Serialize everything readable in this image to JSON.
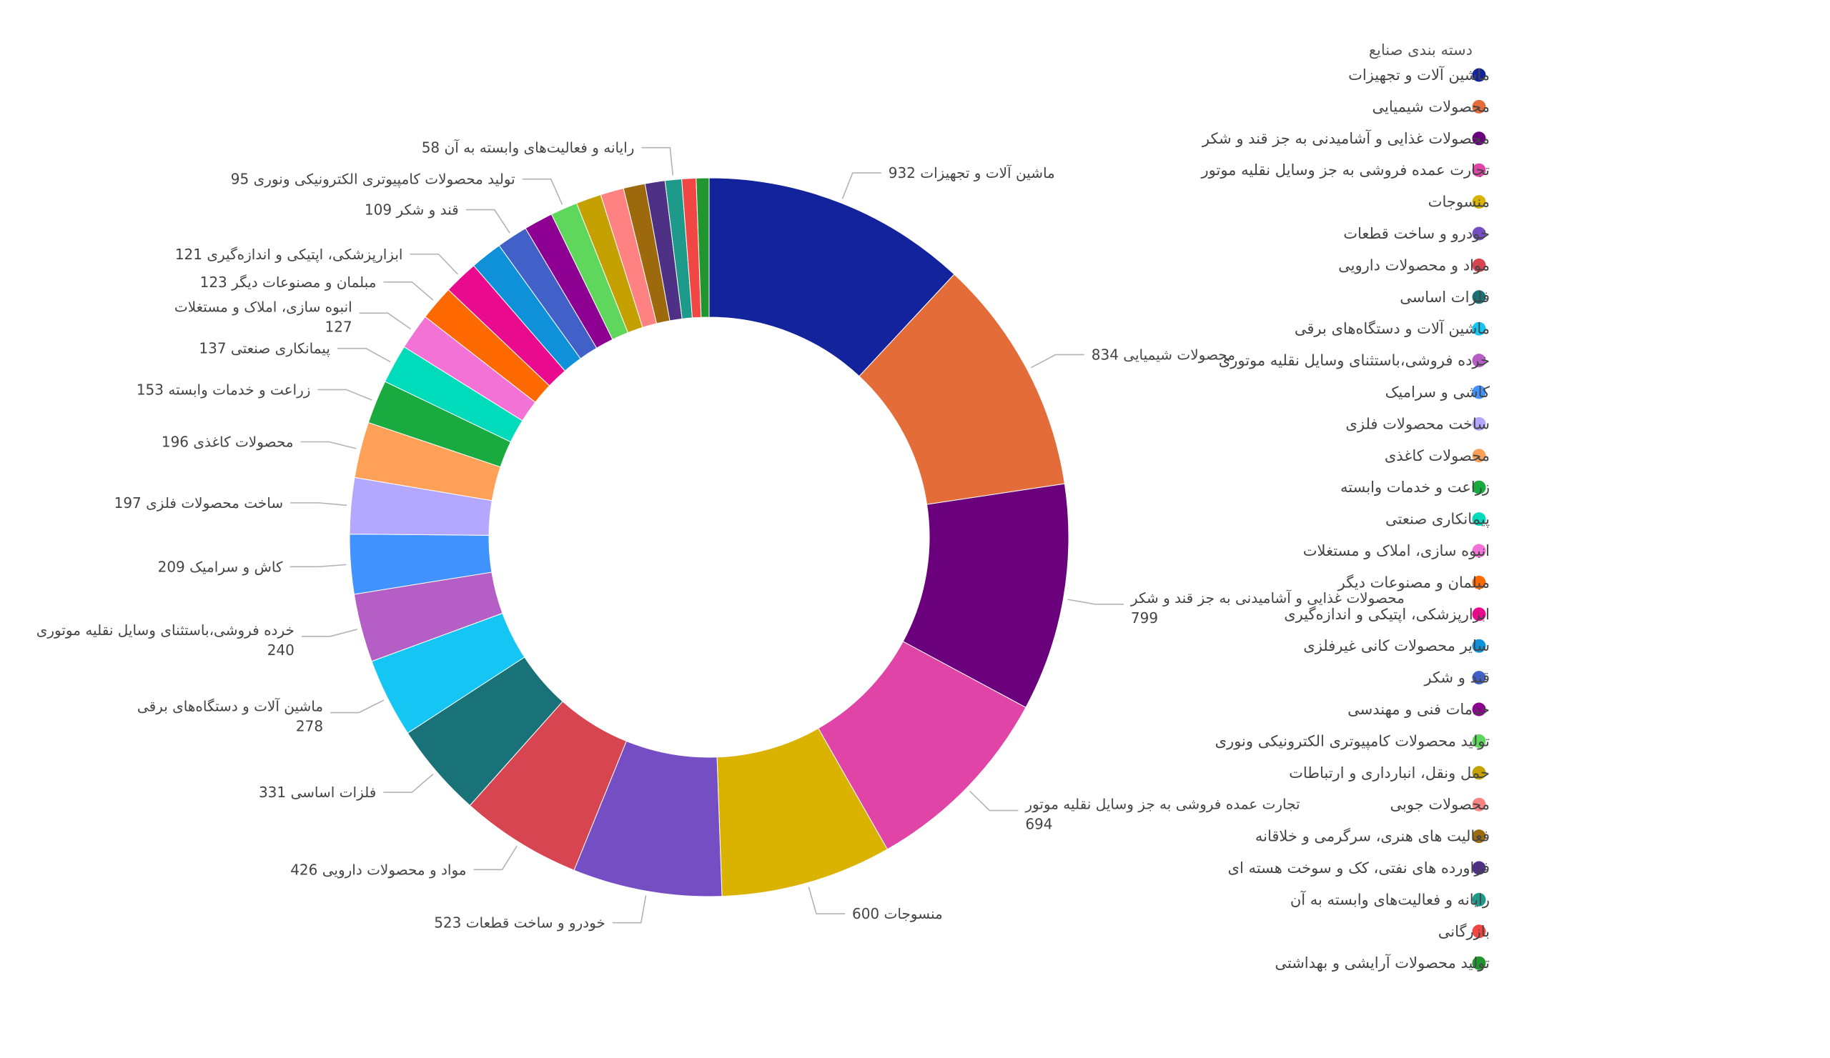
{
  "chart_data": {
    "type": "pie",
    "donut": true,
    "legend_title": "دسته بندی صنایع",
    "legend_position": "right",
    "slices": [
      {
        "name": "ماشین آلات و تجهیزات",
        "value": 932,
        "color": "#13239b",
        "label": "932 ماشین آلات و تجهیزات"
      },
      {
        "name": "محصولات شیمیایی",
        "value": 834,
        "color": "#e36c38",
        "label": "834 محصولات شیمیایی"
      },
      {
        "name": "محصولات غذایی و آشامیدنی به جز قند و شکر",
        "value": 799,
        "color": "#6a007b",
        "label": "محصولات غذایی و آشامیدنی به جز قند و شکر",
        "label2": "799"
      },
      {
        "name": "تجارت عمده فروشی به جز وسایل نقلیه موتور",
        "value": 694,
        "color": "#e044a7",
        "label": "تجارت عمده فروشی به جز وسایل نقلیه موتور",
        "label2": "694"
      },
      {
        "name": "منسوجات",
        "value": 600,
        "color": "#d9b300",
        "label": "600 منسوجات"
      },
      {
        "name": "خودرو و ساخت قطعات",
        "value": 523,
        "color": "#744ec2",
        "label": "523 خودرو و ساخت قطعات"
      },
      {
        "name": "مواد و محصولات دارویی",
        "value": 426,
        "color": "#d64550",
        "label": "426 مواد و محصولات دارویی"
      },
      {
        "name": "فلزات اساسی",
        "value": 331,
        "color": "#197278",
        "label": "331 فلزات اساسی"
      },
      {
        "name": "ماشین آلات و دستگاه‌های برقی",
        "value": 278,
        "color": "#15c6f4",
        "label": "ماشین آلات و دستگاه‌های برقی",
        "label2": "278"
      },
      {
        "name": "خرده فروشی،باستثنای وسایل نقلیه موتوری",
        "value": 240,
        "color": "#b55fc6",
        "label": "خرده فروشی،باستثنای وسایل نقلیه موتوری",
        "label2": "240"
      },
      {
        "name": "کاشی و سرامیک",
        "value": 209,
        "color": "#4092ff",
        "label": "209 کاش و سرامیک"
      },
      {
        "name": "ساخت محصولات فلزی",
        "value": 197,
        "color": "#b4a7ff",
        "label": "197 ساخت محصولات فلزی"
      },
      {
        "name": "محصولات کاغذی",
        "value": 196,
        "color": "#ffa058",
        "label": "196 محصولات کاغذی"
      },
      {
        "name": "زراعت و خدمات وابسته",
        "value": 153,
        "color": "#1aab40",
        "label": "153 زراعت و خدمات وابسته"
      },
      {
        "name": "پیمانکاری صنعتی",
        "value": 137,
        "color": "#00dbbc",
        "label": "137 پیمانکاری صنعتی"
      },
      {
        "name": "انبوه سازی، املاک و مستغلات",
        "value": 127,
        "color": "#f372d5",
        "label": "انبوه سازی، املاک و مستغلات",
        "label2": "127"
      },
      {
        "name": "مبلمان و مصنوعات دیگر",
        "value": 123,
        "color": "#fe6a01",
        "label": "123 مبلمان و مصنوعات دیگر"
      },
      {
        "name": "ابزارپزشکی، اپتیکی و اندازه‌گیری",
        "value": 121,
        "color": "#ea0a8e",
        "label": "121 ابزارپزشکی، اپتیکی و اندازه‌گیری"
      },
      {
        "name": "سایر محصولات کانی غیرفلزی",
        "value": 112,
        "color": "#0e91d8"
      },
      {
        "name": "قند و شکر",
        "value": 109,
        "color": "#4161c8",
        "label": "109 قند و شکر"
      },
      {
        "name": "خدمات فنی و مهندسی",
        "value": 102,
        "color": "#8e0092"
      },
      {
        "name": "تولید محصولات کامپیوتری الکترونیکی ونوری",
        "value": 95,
        "color": "#5fd65c",
        "label": "95 تولید محصولات کامپیوتری الکترونیکی ونوری"
      },
      {
        "name": "حمل ونقل، انبارداری و ارتباطات",
        "value": 88,
        "color": "#c4a000"
      },
      {
        "name": "محصولات جوبی",
        "value": 82,
        "color": "#ff8282"
      },
      {
        "name": "فعالیت های هنری، سرگرمی و خلاقانه",
        "value": 76,
        "color": "#9c6a0c"
      },
      {
        "name": "فراورده های نفتی، کک و سوخت هسته ای",
        "value": 70,
        "color": "#4e3085"
      },
      {
        "name": "رایانه و فعالیت‌های وابسته به آن",
        "value": 58,
        "color": "#1e9a8a",
        "label": "58 رایانه و فعالیت‌های وابسته به آن"
      },
      {
        "name": "بازرگانی",
        "value": 50,
        "color": "#f04745"
      },
      {
        "name": "تولید محصولات آرایشی و بهداشتی",
        "value": 45,
        "color": "#22962e"
      }
    ]
  }
}
